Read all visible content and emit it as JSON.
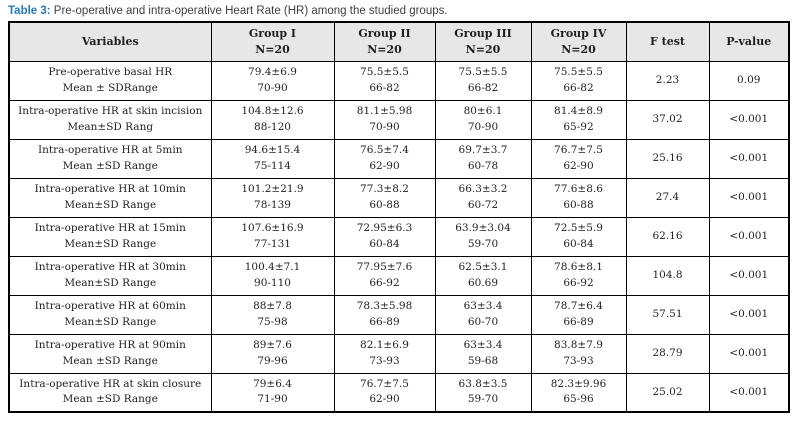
{
  "caption": {
    "label": "Table 3:",
    "text": " Pre-operative and intra-operative Heart Rate (HR) among the studied groups."
  },
  "header": {
    "variables": "Variables",
    "groups": [
      {
        "label": "Group I",
        "n": "N=20"
      },
      {
        "label": "Group II",
        "n": "N=20"
      },
      {
        "label": "Group III",
        "n": "N=20"
      },
      {
        "label": "Group IV",
        "n": "N=20"
      }
    ],
    "f_test": "F test",
    "p_value": "P-value"
  },
  "rows": [
    {
      "variable": "Pre-operative basal HR",
      "measure": "Mean ± SDRange",
      "groups": [
        {
          "mean": "79.4±6.9",
          "range": "70-90"
        },
        {
          "mean": "75.5±5.5",
          "range": "66-82"
        },
        {
          "mean": "75.5±5.5",
          "range": "66-82"
        },
        {
          "mean": "75.5±5.5",
          "range": "66-82"
        }
      ],
      "f": "2.23",
      "p": "0.09"
    },
    {
      "variable": "Intra-operative HR at skin incision",
      "measure": "Mean±SD Rang",
      "groups": [
        {
          "mean": "104.8±12.6",
          "range": "88-120"
        },
        {
          "mean": "81.1±5.98",
          "range": "70-90"
        },
        {
          "mean": "80±6.1",
          "range": "70-90"
        },
        {
          "mean": "81.4±8.9",
          "range": "65-92"
        }
      ],
      "f": "37.02",
      "p": "<0.001"
    },
    {
      "variable": "Intra-operative HR at 5min",
      "measure": "Mean ±SD Range",
      "groups": [
        {
          "mean": "94.6±15.4",
          "range": "75-114"
        },
        {
          "mean": "76.5±7.4",
          "range": "62-90"
        },
        {
          "mean": "69.7±3.7",
          "range": "60-78"
        },
        {
          "mean": "76.7±7.5",
          "range": "62-90"
        }
      ],
      "f": "25.16",
      "p": "<0.001"
    },
    {
      "variable": "Intra-operative HR at 10min",
      "measure": "Mean±SD Range",
      "groups": [
        {
          "mean": "101.2±21.9",
          "range": "78-139"
        },
        {
          "mean": "77.3±8.2",
          "range": "60-88"
        },
        {
          "mean": "66.3±3.2",
          "range": "60-72"
        },
        {
          "mean": "77.6±8.6",
          "range": "60-88"
        }
      ],
      "f": "27.4",
      "p": "<0.001"
    },
    {
      "variable": "Intra-operative HR at 15min",
      "measure": "Mean±SD Range",
      "groups": [
        {
          "mean": "107.6±16.9",
          "range": "77-131"
        },
        {
          "mean": "72.95±6.3",
          "range": "60-84"
        },
        {
          "mean": "63.9±3.04",
          "range": "59-70"
        },
        {
          "mean": "72.5±5.9",
          "range": "60-84"
        }
      ],
      "f": "62.16",
      "p": "<0.001"
    },
    {
      "variable": "Intra-operative HR at 30min",
      "measure": "Mean±SD  Range",
      "groups": [
        {
          "mean": "100.4±7.1",
          "range": "90-110"
        },
        {
          "mean": "77.95±7.6",
          "range": "66-92"
        },
        {
          "mean": "62.5±3.1",
          "range": "60.69"
        },
        {
          "mean": "78.6±8.1",
          "range": "66-92"
        }
      ],
      "f": "104.8",
      "p": "<0.001"
    },
    {
      "variable": "Intra-operative HR at 60min",
      "measure": "Mean±SD  Range",
      "groups": [
        {
          "mean": "88±7.8",
          "range": "75-98"
        },
        {
          "mean": "78.3±5.98",
          "range": "66-89"
        },
        {
          "mean": "63±3.4",
          "range": "60-70"
        },
        {
          "mean": "78.7±6.4",
          "range": "66-89"
        }
      ],
      "f": "57.51",
      "p": "<0.001"
    },
    {
      "variable": "Intra-operative HR at 90min",
      "measure": "Mean ±SD Range",
      "groups": [
        {
          "mean": "89±7.6",
          "range": "79-96"
        },
        {
          "mean": "82.1±6.9",
          "range": "73-93"
        },
        {
          "mean": "63±3.4",
          "range": "59-68"
        },
        {
          "mean": "83.8±7.9",
          "range": "73-93"
        }
      ],
      "f": "28.79",
      "p": "<0.001"
    },
    {
      "variable": "Intra-operative HR at skin closure",
      "measure": "Mean ±SD Range",
      "groups": [
        {
          "mean": "79±6.4",
          "range": "71-90"
        },
        {
          "mean": "76.7±7.5",
          "range": "62-90"
        },
        {
          "mean": "63.8±3.5",
          "range": "59-70"
        },
        {
          "mean": "82.3±9.96",
          "range": "65-96"
        }
      ],
      "f": "25.02",
      "p": "<0.001"
    }
  ],
  "colors": {
    "accent": "#2878b5",
    "caption-text": "#404040",
    "header-bg": "#e7e7e7",
    "border": "#000000",
    "cell-text": "#1f1f1f"
  }
}
